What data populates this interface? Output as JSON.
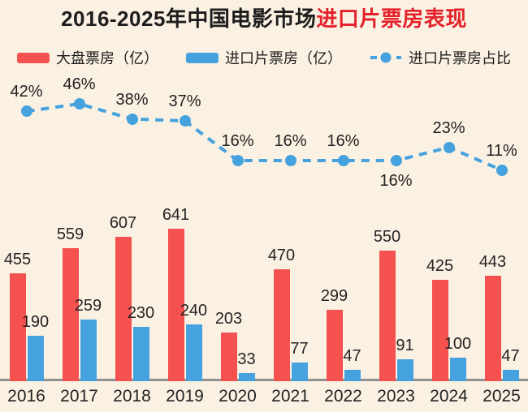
{
  "title": {
    "prefix": "2016-2025年中国电影市场",
    "highlight": "进口片票房表现",
    "highlight_color": "#e3222b"
  },
  "legend": {
    "items": [
      {
        "label": "大盘票房（亿）",
        "marker": "red-bar-swatch",
        "color": "#f4514f"
      },
      {
        "label": "进口片票房（亿）",
        "marker": "blue-bar-swatch",
        "color": "#45a2de"
      },
      {
        "label": "进口片票房占比",
        "marker": "dashed-line-dot",
        "color": "#45a2de"
      }
    ]
  },
  "chart_data": {
    "type": "bar+line",
    "title": "2016-2025年中国电影市场进口片票房表现",
    "categories": [
      "2016",
      "2017",
      "2018",
      "2019",
      "2020",
      "2021",
      "2022",
      "2023",
      "2024",
      "2025"
    ],
    "series": [
      {
        "name": "大盘票房（亿）",
        "type": "bar",
        "color": "#f4514f",
        "values": [
          455,
          559,
          607,
          641,
          203,
          470,
          299,
          550,
          425,
          443
        ]
      },
      {
        "name": "进口片票房（亿）",
        "type": "bar",
        "color": "#45a2de",
        "values": [
          190,
          259,
          230,
          240,
          33,
          77,
          47,
          91,
          100,
          47
        ]
      },
      {
        "name": "进口片票房占比",
        "type": "line",
        "line_style": "dashed",
        "color": "#45a2de",
        "unit": "%",
        "values": [
          42,
          46,
          38,
          37,
          16,
          16,
          16,
          16,
          23,
          11
        ],
        "label_positions": [
          "above",
          "above",
          "above",
          "above",
          "above",
          "above",
          "above",
          "below",
          "above",
          "above"
        ]
      }
    ],
    "value_labels": "shown",
    "grid": "off",
    "axes": "x-axis only, no y-axis ticks",
    "legend_position": "top",
    "background": "#fbf1e3"
  }
}
